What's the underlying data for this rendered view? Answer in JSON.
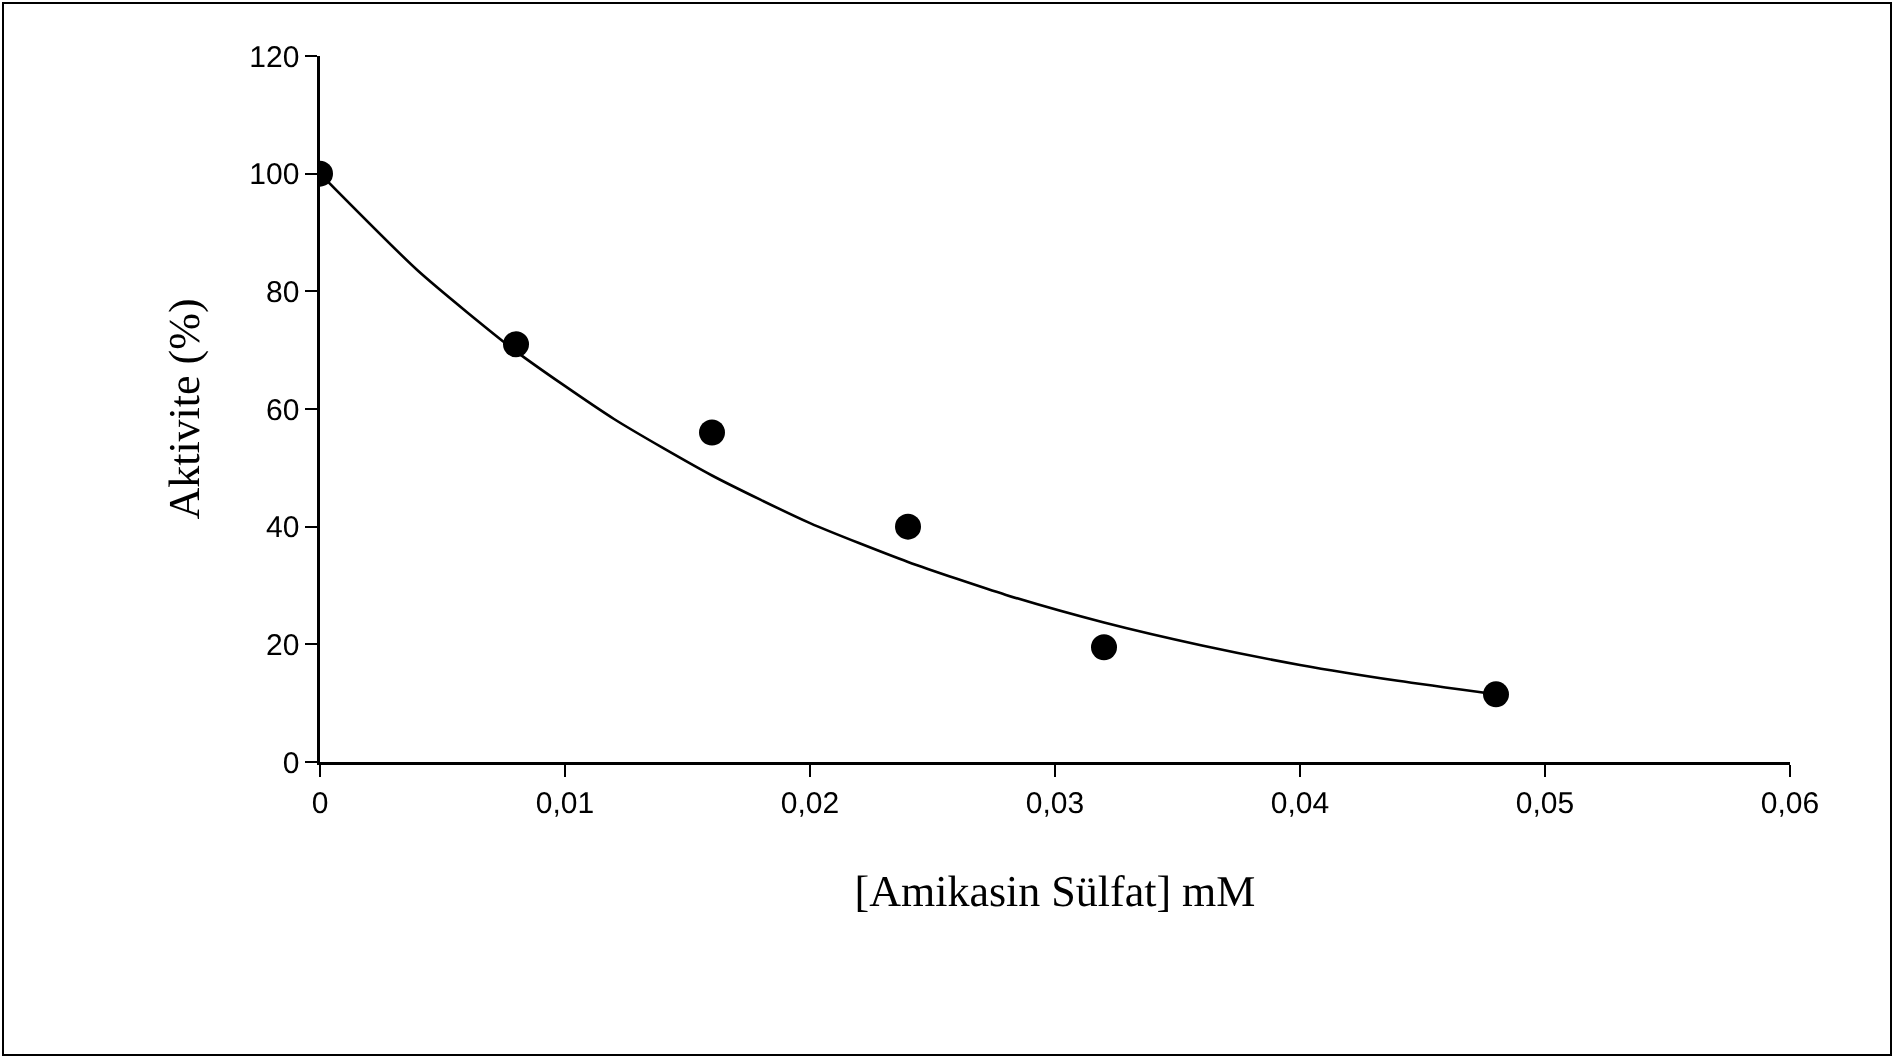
{
  "chart_data": {
    "type": "scatter",
    "xlabel": "[Amikasin Sülfat] mM",
    "ylabel": "Aktivite (%)",
    "xlim": [
      0,
      0.06
    ],
    "xticks": [
      {
        "value": 0,
        "label": "0"
      },
      {
        "value": 0.01,
        "label": "0,01"
      },
      {
        "value": 0.02,
        "label": "0,02"
      },
      {
        "value": 0.03,
        "label": "0,03"
      },
      {
        "value": 0.04,
        "label": "0,04"
      },
      {
        "value": 0.05,
        "label": "0,05"
      },
      {
        "value": 0.06,
        "label": "0,06"
      }
    ],
    "ylim": [
      0,
      120
    ],
    "yticks": [
      0,
      20,
      40,
      60,
      80,
      100,
      120
    ],
    "grid": false,
    "marker": "circle",
    "series": [
      {
        "color": "#000000",
        "x": [
          0,
          0.008,
          0.016,
          0.024,
          0.032,
          0.048
        ],
        "values": [
          100,
          71,
          56,
          40,
          19.5,
          11.5
        ]
      },
      {
        "type": "line",
        "color": "#000000",
        "marker": "none",
        "line_style": "solid",
        "x": [
          0,
          0.004,
          0.008,
          0.012,
          0.016,
          0.02,
          0.024,
          0.028,
          0.032,
          0.036,
          0.04,
          0.044,
          0.048
        ],
        "values": [
          100,
          83.5,
          69.8,
          58.3,
          48.7,
          40.6,
          34,
          28.4,
          23.7,
          19.8,
          16.5,
          13.8,
          11.5
        ]
      }
    ]
  }
}
